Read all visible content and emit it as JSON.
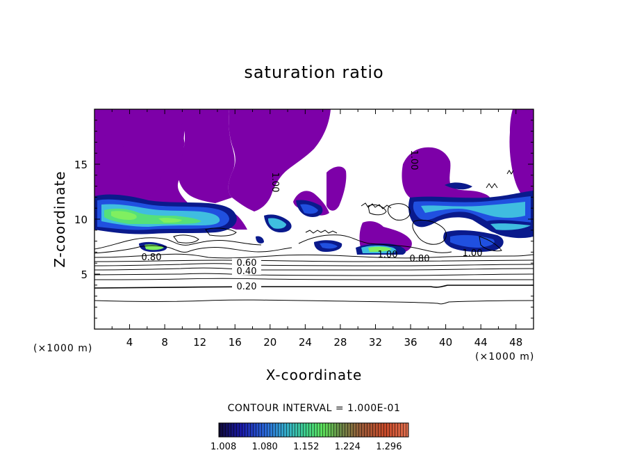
{
  "chart_data": {
    "type": "heatmap",
    "title": "saturation ratio",
    "xlabel": "X-coordinate",
    "ylabel": "Z-coordinate",
    "x_unit": "(×1000 m)",
    "z_unit": "(×1000 m)",
    "xlim": [
      0,
      50
    ],
    "ylim": [
      0,
      20
    ],
    "x_ticks": [
      "4",
      "8",
      "12",
      "16",
      "20",
      "24",
      "28",
      "32",
      "36",
      "40",
      "44",
      "48"
    ],
    "y_ticks": [
      "5",
      "10",
      "15"
    ],
    "contour_interval_text": "CONTOUR INTERVAL = 1.000E-01",
    "contour_labels": [
      "0.20",
      "0.40",
      "0.60",
      "0.80",
      "1.00"
    ],
    "colorbar": {
      "ticks": [
        "1.008",
        "1.080",
        "1.152",
        "1.224",
        "1.296"
      ],
      "min": 1.0,
      "max": 1.33,
      "colors": [
        "#10104a",
        "#1a1aa8",
        "#2a6ad8",
        "#35b0c8",
        "#3fcf8a",
        "#5de05a",
        "#8a8040",
        "#b05030",
        "#d8502a",
        "#e07050"
      ]
    },
    "colors": {
      "supersaturated": "#7d00a8",
      "dark_blue": "#0a1a8c",
      "blue": "#2050e0",
      "cyan": "#3fbde0",
      "green": "#55e07a",
      "lime": "#80ef60"
    }
  }
}
